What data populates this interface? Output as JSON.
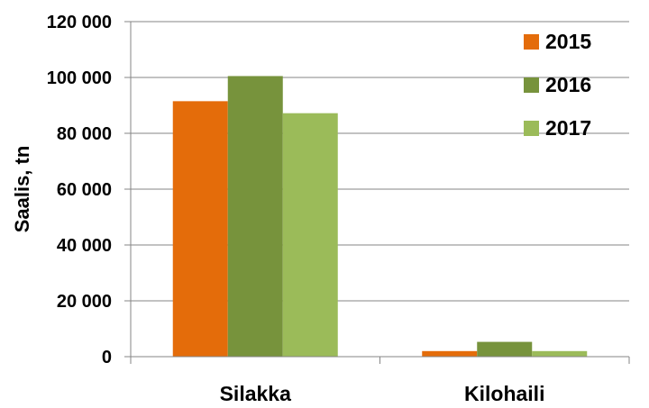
{
  "chart_data": {
    "type": "bar",
    "categories": [
      "Silakka",
      "Kilohaili"
    ],
    "series": [
      {
        "name": "2015",
        "values": [
          91500,
          2000
        ],
        "color": "#e46c0a"
      },
      {
        "name": "2016",
        "values": [
          100500,
          5300
        ],
        "color": "#77933c"
      },
      {
        "name": "2017",
        "values": [
          87200,
          2000
        ],
        "color": "#9bbb59"
      }
    ],
    "xlabel": "",
    "ylabel": "Saalis, tn",
    "ylim": [
      0,
      120000
    ],
    "yticks": [
      0,
      20000,
      40000,
      60000,
      80000,
      100000,
      120000
    ],
    "ytick_labels": [
      "0",
      "20 000",
      "40 000",
      "60 000",
      "80 000",
      "100 000",
      "120 000"
    ],
    "grid": true,
    "legend_position": "top-right",
    "grid_color": "#868686"
  }
}
